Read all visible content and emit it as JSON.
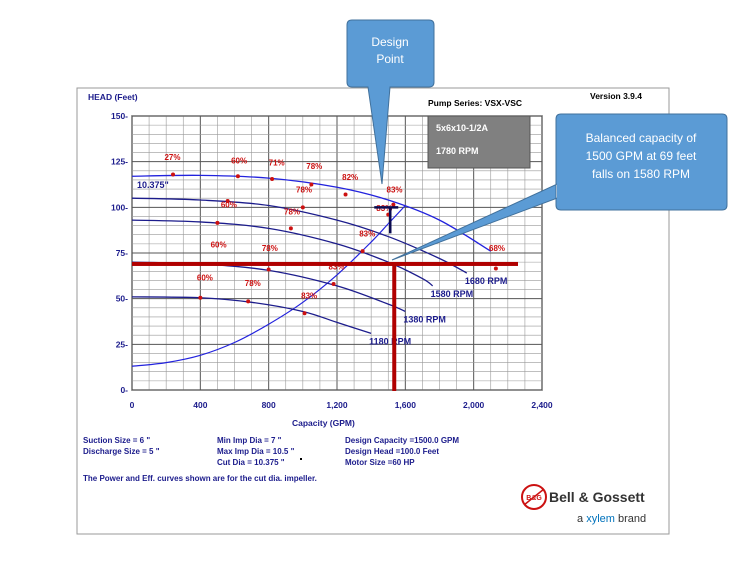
{
  "header": {
    "version": "Version 3.9.4",
    "pump_series": "Pump Series: VSX-VSC"
  },
  "spec_box": {
    "model": "5x6x10-1/2A",
    "speed": "1780 RPM"
  },
  "callouts": {
    "design_point_line1": "Design",
    "design_point_line2": "Point",
    "balanced_line1": "Balanced capacity of",
    "balanced_line2": "1500 GPM at 69 feet",
    "balanced_line3": "falls on 1580 RPM"
  },
  "info": {
    "suction": "Suction Size = 6 \"",
    "discharge": "Discharge Size = 5 \"",
    "min_imp": "Min Imp Dia = 7 \"",
    "max_imp": "Max Imp Dia = 10.5 \"",
    "cut_dia": "Cut Dia = 10.375 \"",
    "design_capacity": "Design Capacity =1500.0 GPM",
    "design_head": "Design Head =100.0 Feet",
    "motor_size": "Motor Size =60 HP",
    "note": "The Power and Eff. curves shown are for the cut dia. impeller."
  },
  "brand": {
    "company": "Bell & Gossett",
    "tagline_prefix": "a ",
    "tagline_brand": "xylem",
    "tagline_suffix": " brand",
    "logo_letters": "B&G"
  },
  "colors": {
    "curve": "#1c1c8c",
    "system_curve": "#2222dd",
    "efficiency": "#cc1111",
    "overlay": "#b00000",
    "callout_fill": "#5b9bd5",
    "callout_stroke": "#41719c"
  },
  "chart_data": {
    "type": "line",
    "xlabel": "Capacity (GPM)",
    "ylabel": "HEAD (Feet)",
    "xlim": [
      0,
      2400
    ],
    "ylim": [
      0,
      150
    ],
    "xticks": [
      0,
      400,
      800,
      1200,
      1600,
      2000,
      2400
    ],
    "xtick_labels": [
      "0",
      "400",
      "800",
      "1,200",
      "1,600",
      "2,000",
      "2,400"
    ],
    "yticks": [
      0,
      25,
      50,
      75,
      100,
      125,
      150
    ],
    "ytick_labels": [
      "0-",
      "25-",
      "50-",
      "75-",
      "100-",
      "125-",
      "150-"
    ],
    "grid": true,
    "series": [
      {
        "name": "10.375\"",
        "label_x": 0,
        "label_y": 110,
        "x": [
          0,
          400,
          800,
          1200,
          1500,
          1800,
          2100
        ],
        "y": [
          117,
          117.5,
          116,
          111,
          104,
          93,
          76
        ]
      },
      {
        "name": "1680 RPM",
        "x": [
          0,
          400,
          800,
          1200,
          1500,
          1800,
          1960
        ],
        "y": [
          105,
          104,
          101,
          93,
          84,
          72,
          64
        ]
      },
      {
        "name": "1580 RPM",
        "x": [
          0,
          400,
          800,
          1200,
          1500,
          1700,
          1760
        ],
        "y": [
          93,
          92,
          88.5,
          80,
          70,
          61,
          57
        ]
      },
      {
        "name": "1380 RPM",
        "x": [
          0,
          400,
          800,
          1200,
          1500,
          1600
        ],
        "y": [
          70,
          69,
          65.5,
          57,
          47,
          43
        ]
      },
      {
        "name": "1180 RPM",
        "x": [
          0,
          400,
          700,
          1000,
          1200,
          1400
        ],
        "y": [
          51,
          50.5,
          48,
          43,
          37,
          31
        ]
      }
    ],
    "system_curve": {
      "x": [
        0,
        200,
        400,
        600,
        800,
        1000,
        1200,
        1400,
        1500,
        1600
      ],
      "y": [
        13,
        15,
        19,
        26,
        36,
        48,
        63,
        81,
        91,
        101
      ]
    },
    "efficiency_points": [
      {
        "label": "27%",
        "x": 240,
        "y": 118,
        "lx": 190,
        "ly": 126
      },
      {
        "label": "60%",
        "x": 620,
        "y": 117,
        "lx": 580,
        "ly": 124
      },
      {
        "label": "71%",
        "x": 820,
        "y": 115.5,
        "lx": 800,
        "ly": 123
      },
      {
        "label": "78%",
        "x": 1050,
        "y": 112.5,
        "lx": 1020,
        "ly": 121
      },
      {
        "label": "82%",
        "x": 1250,
        "y": 107,
        "lx": 1230,
        "ly": 115
      },
      {
        "label": "83%",
        "x": 1530,
        "y": 101.5,
        "lx": 1490,
        "ly": 108
      },
      {
        "label": "68%",
        "x": 2130,
        "y": 66.5,
        "lx": 2090,
        "ly": 76
      },
      {
        "label": "78%",
        "x": 1000,
        "y": 100,
        "lx": 960,
        "ly": 108
      },
      {
        "label": "60%",
        "x": 560,
        "y": 103.5,
        "lx": 520,
        "ly": 100
      },
      {
        "label": "78%",
        "x": 930,
        "y": 88.5,
        "lx": 890,
        "ly": 96
      },
      {
        "label": "83%",
        "x": 1500,
        "y": 96,
        "lx": 1430,
        "ly": 98
      },
      {
        "label": "60%",
        "x": 500,
        "y": 91.5,
        "lx": 460,
        "ly": 78
      },
      {
        "label": "83%",
        "x": 1350,
        "y": 76,
        "lx": 1330,
        "ly": 84
      },
      {
        "label": "78%",
        "x": 800,
        "y": 66,
        "lx": 760,
        "ly": 76
      },
      {
        "label": "83%",
        "x": 1180,
        "y": 58,
        "lx": 1150,
        "ly": 66
      },
      {
        "label": "60%",
        "x": 400,
        "y": 50.5,
        "lx": 380,
        "ly": 60
      },
      {
        "label": "78%",
        "x": 680,
        "y": 48.5,
        "lx": 660,
        "ly": 57
      },
      {
        "label": "83%",
        "x": 1010,
        "y": 42,
        "lx": 990,
        "ly": 50
      }
    ],
    "design_marker": {
      "x": 1500,
      "y": 100
    },
    "overlay_lines": {
      "head_y": 69,
      "capacity_x": 1500
    }
  }
}
